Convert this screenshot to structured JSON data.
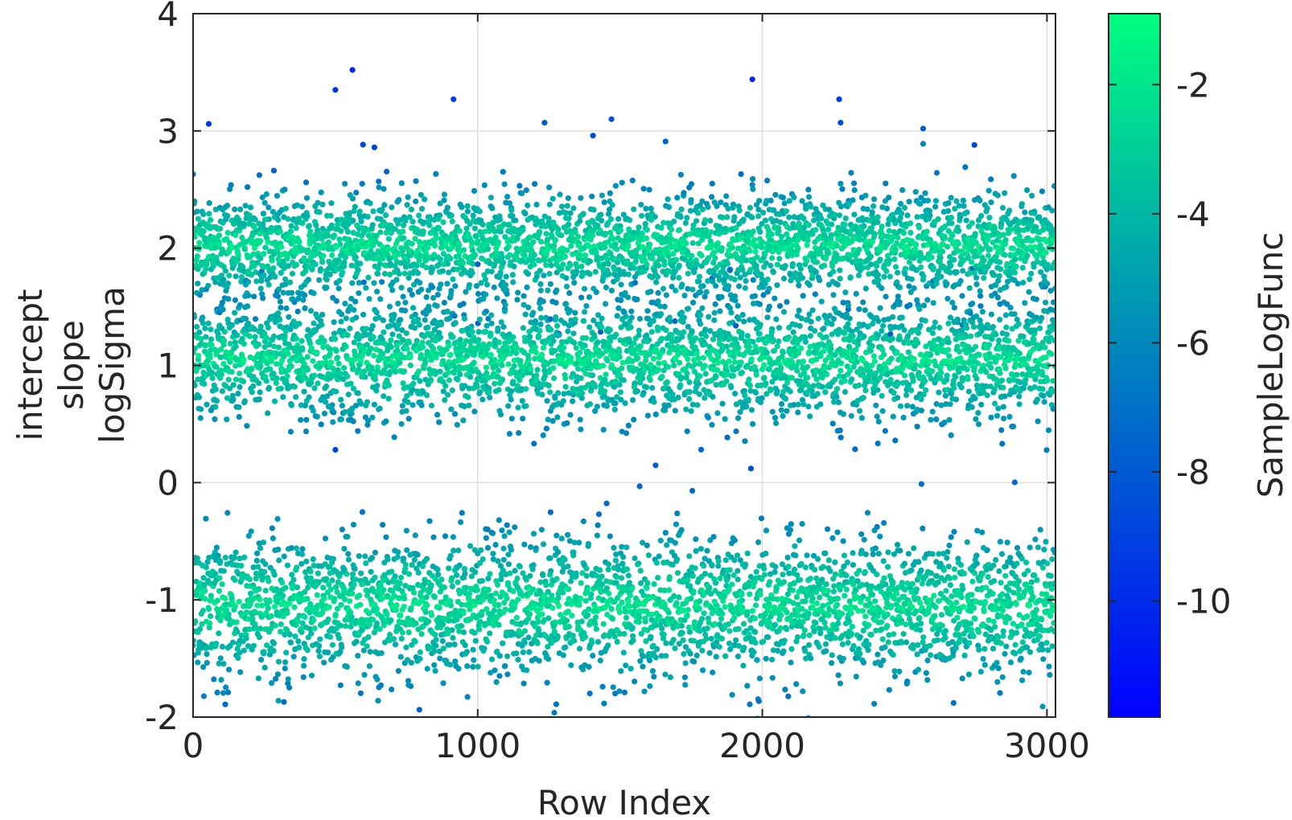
{
  "chart_data": {
    "type": "scatter",
    "title": "",
    "xlabel": "Row Index",
    "ylabel_lines": [
      "intercept",
      "slope",
      "logSigma"
    ],
    "xlim": [
      0,
      3030
    ],
    "ylim": [
      -2,
      4
    ],
    "xticks": [
      0,
      1000,
      2000,
      3000
    ],
    "xtick_labels": [
      "0",
      "1000",
      "2000",
      "3000"
    ],
    "yticks": [
      -2,
      -1,
      0,
      1,
      2,
      3,
      4
    ],
    "ytick_labels": [
      "-2",
      "-1",
      "0",
      "1",
      "2",
      "3",
      "4"
    ],
    "grid": true,
    "colormap": {
      "name": "winter",
      "low_color": "#0000ff",
      "high_color": "#00ff80"
    },
    "colorbar": {
      "label": "SampleLogFunc",
      "limits": [
        -11.8,
        -0.9
      ],
      "ticks": [
        -10,
        -8,
        -6,
        -4,
        -2
      ],
      "tick_labels": [
        "-10",
        "-8",
        "-6",
        "-4",
        "-2"
      ]
    },
    "num_rows": 3030,
    "series": [
      {
        "parameter": "intercept",
        "center": 2.02,
        "spread": 0.22
      },
      {
        "parameter": "slope",
        "center": 1.05,
        "spread": 0.25
      },
      {
        "parameter": "logSigma",
        "center": -1.05,
        "spread": 0.3
      }
    ],
    "outliers": [
      {
        "x": 55,
        "y": 3.06,
        "c": -9.5
      },
      {
        "x": 500,
        "y": 3.35,
        "c": -9.8
      },
      {
        "x": 560,
        "y": 3.52,
        "c": -10.2
      },
      {
        "x": 915,
        "y": 3.27,
        "c": -9.0
      },
      {
        "x": 1235,
        "y": 3.07,
        "c": -8.0
      },
      {
        "x": 1405,
        "y": 2.96,
        "c": -8.5
      },
      {
        "x": 1470,
        "y": 3.1,
        "c": -8.2
      },
      {
        "x": 1660,
        "y": 2.91,
        "c": -7.5
      },
      {
        "x": 1965,
        "y": 3.44,
        "c": -10.0
      },
      {
        "x": 2270,
        "y": 3.27,
        "c": -9.2
      },
      {
        "x": 2275,
        "y": 3.07,
        "c": -8.4
      },
      {
        "x": 2565,
        "y": 3.02,
        "c": -7.6
      },
      {
        "x": 2745,
        "y": 2.88,
        "c": -8.8
      },
      {
        "x": 500,
        "y": 0.28,
        "c": -9.0
      },
      {
        "x": 1960,
        "y": 0.12,
        "c": -8.6
      },
      {
        "x": 2565,
        "y": 2.89,
        "c": -6.0
      },
      {
        "x": 300,
        "y": -1.86,
        "c": -5.0
      },
      {
        "x": 650,
        "y": -1.86,
        "c": -5.5
      },
      {
        "x": 2985,
        "y": -1.91,
        "c": -5.2
      }
    ]
  }
}
